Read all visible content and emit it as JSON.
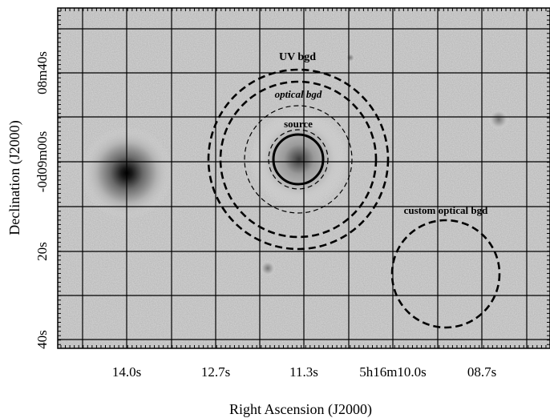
{
  "figure": {
    "x_tick_labels": [
      "14.0s",
      "12.7s",
      "11.3s",
      "5h16m10.0s",
      "08.7s"
    ],
    "y_tick_labels": [
      "08m40s",
      "-0d09m00s",
      "20s",
      "40s"
    ],
    "x_axis_label": "Right Ascension (J2000)",
    "y_axis_label": "Declination (J2000)",
    "regions": {
      "uv_bgd": "UV bgd",
      "optical_bgd": "optical bgd",
      "source": "source",
      "custom_optical_bgd": "custom optical bgd"
    }
  }
}
